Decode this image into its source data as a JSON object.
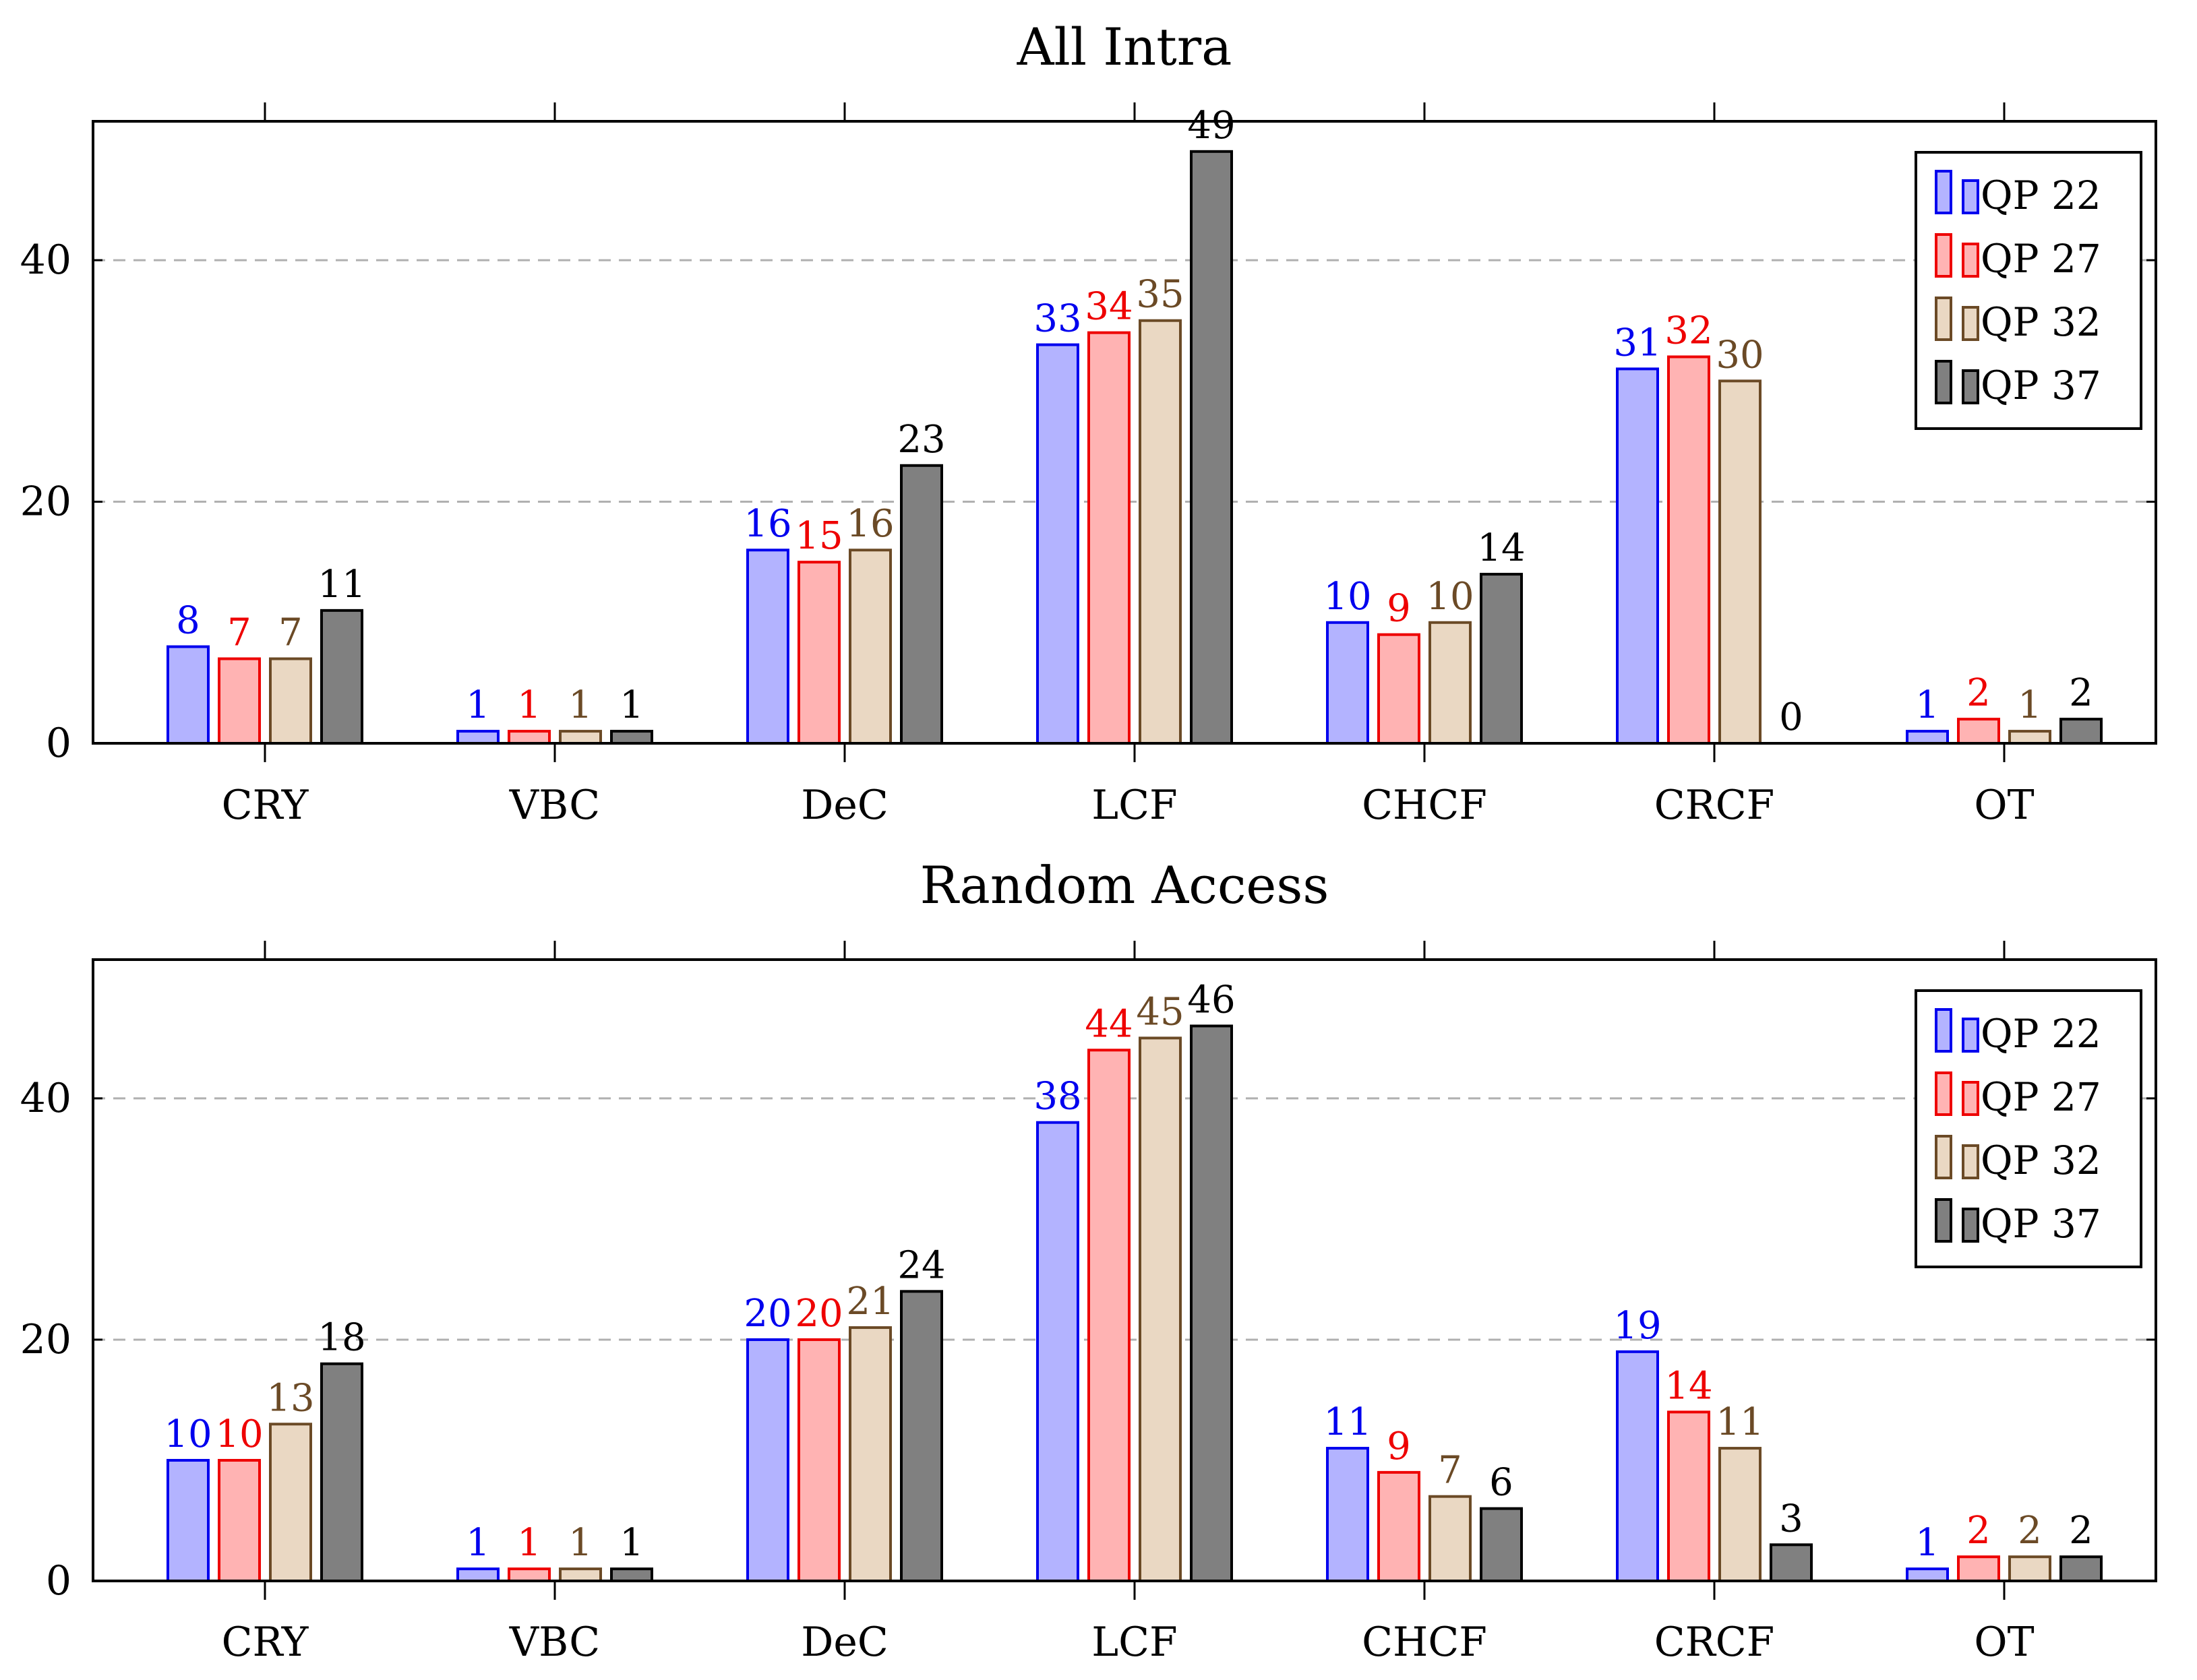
{
  "chart_data": [
    {
      "type": "bar",
      "title": "All Intra",
      "categories": [
        "CRY",
        "VBC",
        "DeC",
        "LCF",
        "CHCF",
        "CRCF",
        "OT"
      ],
      "yticks": [
        0,
        20,
        40
      ],
      "ylim": [
        0,
        51.5
      ],
      "grid": "horizontal dashed",
      "legend_position": "top-right",
      "series": [
        {
          "name": "QP 22",
          "values": [
            8,
            1,
            16,
            33,
            10,
            31,
            1
          ]
        },
        {
          "name": "QP 27",
          "values": [
            7,
            1,
            15,
            34,
            9,
            32,
            2
          ]
        },
        {
          "name": "QP 32",
          "values": [
            7,
            1,
            16,
            35,
            10,
            30,
            1
          ]
        },
        {
          "name": "QP 37",
          "values": [
            11,
            1,
            23,
            49,
            14,
            0,
            2
          ]
        }
      ]
    },
    {
      "type": "bar",
      "title": "Random Access",
      "categories": [
        "CRY",
        "VBC",
        "DeC",
        "LCF",
        "CHCF",
        "CRCF",
        "OT"
      ],
      "yticks": [
        0,
        20,
        40
      ],
      "ylim": [
        0,
        51.5
      ],
      "grid": "horizontal dashed",
      "legend_position": "top-right",
      "series": [
        {
          "name": "QP 22",
          "values": [
            10,
            1,
            20,
            38,
            11,
            19,
            1
          ]
        },
        {
          "name": "QP 27",
          "values": [
            10,
            1,
            20,
            44,
            9,
            14,
            2
          ]
        },
        {
          "name": "QP 32",
          "values": [
            13,
            1,
            21,
            45,
            7,
            11,
            2
          ]
        },
        {
          "name": "QP 37",
          "values": [
            18,
            1,
            24,
            46,
            6,
            3,
            2
          ]
        }
      ]
    }
  ],
  "series_colors": [
    {
      "stroke": "#0000ee",
      "fill": "#b3b3ff",
      "label": "#0000ee"
    },
    {
      "stroke": "#ee0000",
      "fill": "#ffb3b3",
      "label": "#ee0000"
    },
    {
      "stroke": "#6b4a26",
      "fill": "#ead8c3",
      "label": "#6b4a26"
    },
    {
      "stroke": "#000000",
      "fill": "#808080",
      "label": "#000000"
    }
  ]
}
